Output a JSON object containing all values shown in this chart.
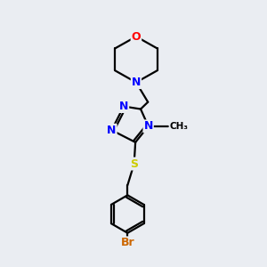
{
  "bg_color": "#eaedf2",
  "atom_colors": {
    "N": "#0000ff",
    "O": "#ff0000",
    "S": "#cccc00",
    "Br": "#cc6600",
    "C": "#000000"
  },
  "bond_color": "#000000",
  "bond_width": 1.6,
  "font_size_atom": 9
}
